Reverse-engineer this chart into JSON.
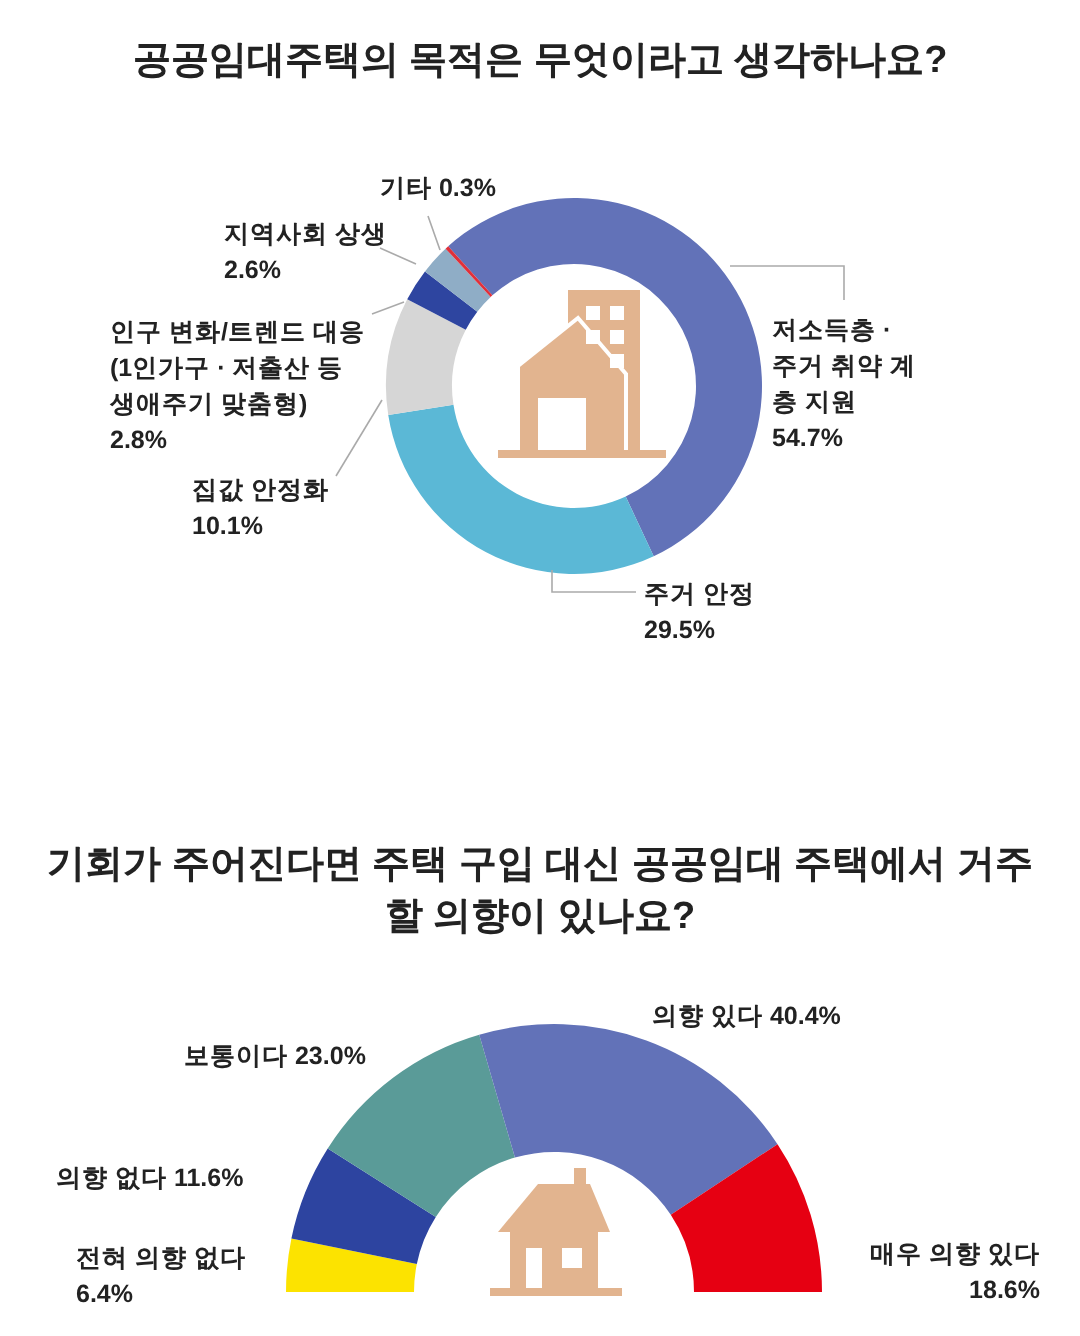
{
  "chart_data": [
    {
      "type": "donut",
      "title": "공공임대주택의 목적은 무엇이라고 생각하나요?",
      "categories": [
        "저소득층 · 주거 취약 계층 지원",
        "주거 안정",
        "집값 안정화",
        "인구 변화/트렌드 대응 (1인가구 · 저출산 등 생애주기 맞춤형)",
        "지역사회 상생",
        "기타"
      ],
      "values": [
        54.7,
        29.5,
        10.1,
        2.8,
        2.6,
        0.3
      ],
      "value_labels": [
        "54.7%",
        "29.5%",
        "10.1%",
        "2.8%",
        "2.6%",
        "0.3%"
      ],
      "colors": [
        "#6272b8",
        "#5bb8d6",
        "#d6d6d6",
        "#2e45a0",
        "#8fadc6",
        "#e0303a"
      ]
    },
    {
      "type": "donut",
      "title": "기회가 주어진다면 주택 구입 대신 공공임대 주택에서 거주할 의향이 있나요?",
      "categories": [
        "전혀 의향 없다",
        "의향 없다",
        "보통이다",
        "의향 있다",
        "매우 의향 있다"
      ],
      "values": [
        6.4,
        11.6,
        23.0,
        40.4,
        18.6
      ],
      "value_labels": [
        "6.4%",
        "11.6%",
        "23.0%",
        "40.4%",
        "18.6%"
      ],
      "colors": [
        "#fce300",
        "#2d44a0",
        "#5a9b98",
        "#6272b8",
        "#e60012"
      ]
    }
  ]
}
